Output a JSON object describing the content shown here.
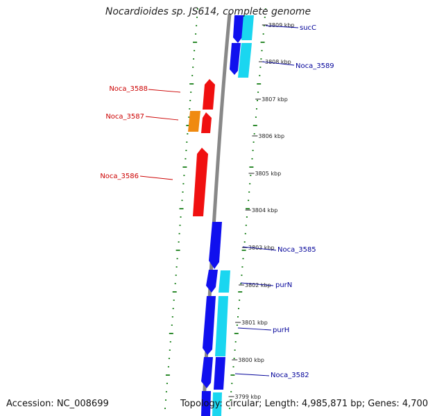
{
  "title": "Nocardioides sp. JS614, complete genome",
  "footer": {
    "accession": "Accession: NC_008699",
    "topology": "Topology: circular; Length: 4,985,871 bp; Genes: 4,700"
  },
  "colors": {
    "forward_cds": "#1010ee",
    "forward_rna": "#1ad6f0",
    "reverse_cds": "#f01010",
    "reverse_other": "#f08a10",
    "label_forward": "#000099",
    "label_reverse": "#cc0000",
    "backbone": "#888888",
    "ticks": "#2e8b2e"
  },
  "kbp_ticks": [
    "3809 kbp",
    "3808 kbp",
    "3807 kbp",
    "3806 kbp",
    "3805 kbp",
    "3804 kbp",
    "3803 kbp",
    "3802 kbp",
    "3801 kbp",
    "3800 kbp",
    "3799 kbp"
  ],
  "gene_labels": {
    "succ": "sucC",
    "noca_3589": "Noca_3589",
    "noca_3588": "Noca_3588",
    "noca_3587": "Noca_3587",
    "noca_3586": "Noca_3586",
    "noca_3585": "Noca_3585",
    "purn": "purN",
    "purh": "purH",
    "noca_3582": "Noca_3582"
  }
}
